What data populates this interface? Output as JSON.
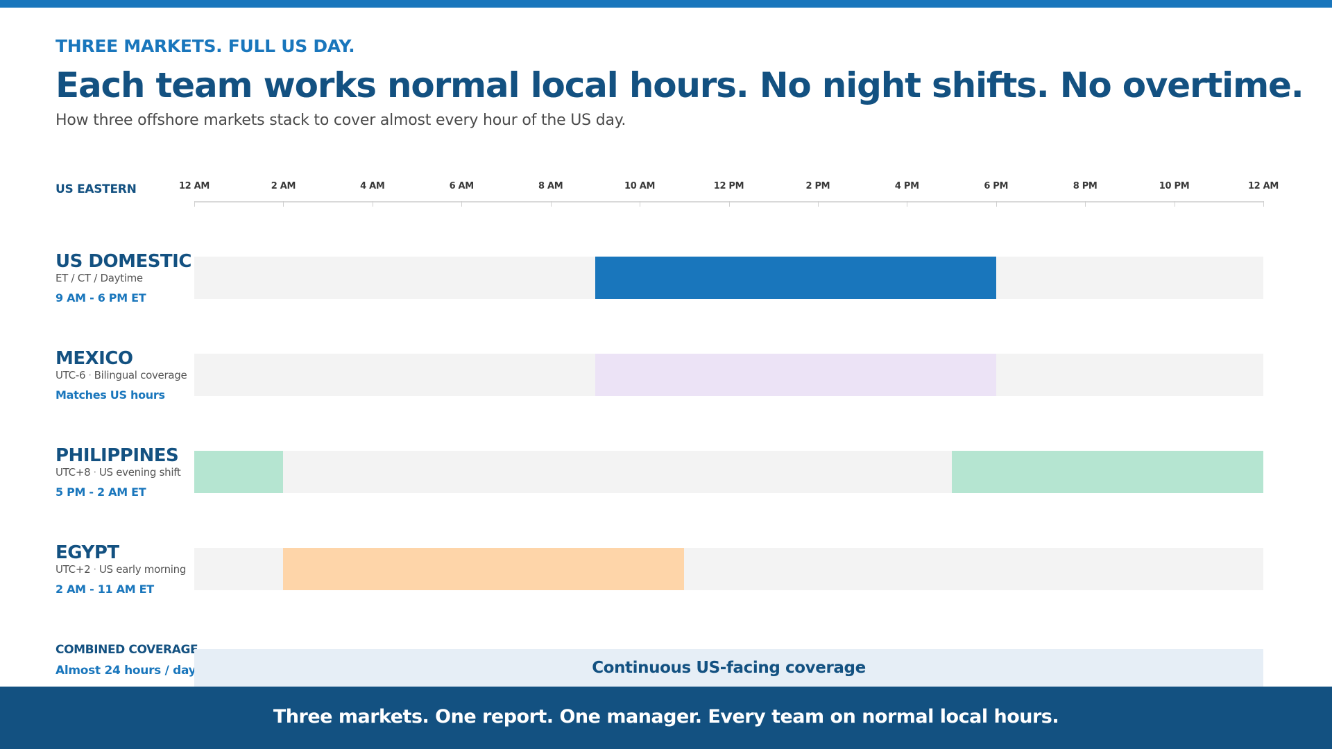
{
  "header": {
    "eyebrow": "THREE MARKETS. FULL US DAY.",
    "headline": "Each team works normal local hours. No night shifts. No overtime.",
    "subtitle": "How three offshore markets stack to cover almost every hour of the US day."
  },
  "axis": {
    "title": "US EASTERN",
    "range_hours": [
      0,
      24
    ],
    "ticks": [
      {
        "hour": 0,
        "label": "12 AM"
      },
      {
        "hour": 2,
        "label": "2 AM"
      },
      {
        "hour": 4,
        "label": "4 AM"
      },
      {
        "hour": 6,
        "label": "6 AM"
      },
      {
        "hour": 8,
        "label": "8 AM"
      },
      {
        "hour": 10,
        "label": "10 AM"
      },
      {
        "hour": 12,
        "label": "12 PM"
      },
      {
        "hour": 14,
        "label": "2 PM"
      },
      {
        "hour": 16,
        "label": "4 PM"
      },
      {
        "hour": 18,
        "label": "6 PM"
      },
      {
        "hour": 20,
        "label": "8 PM"
      },
      {
        "hour": 22,
        "label": "10 PM"
      },
      {
        "hour": 24,
        "label": "12 AM"
      }
    ]
  },
  "rows": [
    {
      "name": "US DOMESTIC",
      "meta_zone": "ET / CT / Daytime",
      "meta_note": "",
      "hours": "9 AM - 6 PM ET",
      "color": "#1976bc",
      "segments": [
        {
          "start": 9,
          "end": 18
        }
      ]
    },
    {
      "name": "MEXICO",
      "meta_zone": "UTC-6",
      "meta_note": "Bilingual coverage",
      "hours": "Matches US hours",
      "color": "#ece3f6",
      "segments": [
        {
          "start": 9,
          "end": 18
        }
      ]
    },
    {
      "name": "PHILIPPINES",
      "meta_zone": "UTC+8",
      "meta_note": "US evening shift",
      "hours": "5 PM - 2 AM ET",
      "color": "#b5e5d1",
      "segments": [
        {
          "start": 0,
          "end": 2
        },
        {
          "start": 17,
          "end": 24
        }
      ]
    },
    {
      "name": "EGYPT",
      "meta_zone": "UTC+2",
      "meta_note": "US early morning",
      "hours": "2 AM - 11 AM ET",
      "color": "#fed5a9",
      "segments": [
        {
          "start": 2,
          "end": 11
        }
      ]
    }
  ],
  "combined": {
    "title": "COMBINED COVERAGE",
    "subtitle": "Almost 24 hours / day",
    "band_label": "Continuous US-facing coverage"
  },
  "footer": {
    "text": "Three markets. One report. One manager. Every team on normal local hours."
  }
}
